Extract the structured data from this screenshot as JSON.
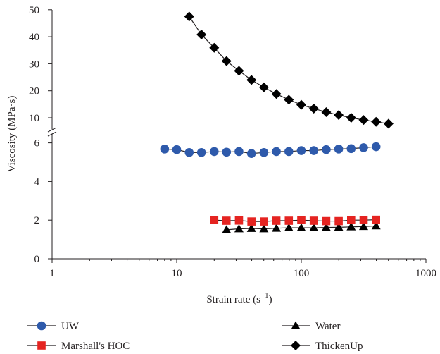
{
  "chart_data": {
    "type": "scatter",
    "title": "",
    "xlabel": "Strain rate (s",
    "xlabel_sup": "−1",
    "xlabel_close": ")",
    "ylabel": "Viscosity (MPa·s)",
    "xscale": "log",
    "xlim": [
      1,
      1000
    ],
    "x_ticks": [
      "1",
      "10",
      "100",
      "1000"
    ],
    "broken_y_axis": true,
    "ylim_lower": [
      0,
      6
    ],
    "ylim_upper": [
      5,
      50
    ],
    "y_ticks_lower": [
      "0",
      "2",
      "4",
      "6"
    ],
    "y_ticks_upper": [
      "10",
      "20",
      "30",
      "40",
      "50"
    ],
    "legend_position": "bottom",
    "series": [
      {
        "name": "UW",
        "marker": "circle",
        "color": "#2e5aab",
        "x": [
          8,
          10,
          12.6,
          15.8,
          20,
          25.1,
          31.6,
          39.8,
          50.1,
          63.1,
          79.4,
          100,
          125.9,
          158.5,
          199.5,
          251.2,
          316.2,
          398.1
        ],
        "y": [
          5.68,
          5.65,
          5.5,
          5.5,
          5.55,
          5.52,
          5.55,
          5.45,
          5.5,
          5.55,
          5.55,
          5.6,
          5.6,
          5.65,
          5.68,
          5.7,
          5.75,
          5.8
        ]
      },
      {
        "name": "Water",
        "marker": "triangle",
        "color": "#000000",
        "x": [
          25.1,
          31.6,
          39.8,
          50.1,
          63.1,
          79.4,
          100,
          125.9,
          158.5,
          199.5,
          251.2,
          316.2,
          398.1
        ],
        "y": [
          1.5,
          1.55,
          1.57,
          1.55,
          1.58,
          1.6,
          1.6,
          1.6,
          1.62,
          1.63,
          1.65,
          1.67,
          1.7
        ]
      },
      {
        "name": "Marshall's HOC",
        "marker": "square",
        "color": "#e52421",
        "x": [
          20,
          25.1,
          31.6,
          39.8,
          50.1,
          63.1,
          79.4,
          100,
          125.9,
          158.5,
          199.5,
          251.2,
          316.2,
          398.1
        ],
        "y": [
          2.0,
          1.97,
          1.98,
          1.93,
          1.93,
          1.97,
          1.97,
          2.0,
          1.97,
          1.95,
          1.95,
          2.0,
          2.0,
          2.02
        ]
      },
      {
        "name": "ThickenUp",
        "marker": "diamond",
        "color": "#000000",
        "x": [
          12.6,
          15.8,
          20,
          25.1,
          31.6,
          39.8,
          50.1,
          63.1,
          79.4,
          100,
          125.9,
          158.5,
          199.5,
          251.2,
          316.2,
          398.1,
          501.2
        ],
        "y": [
          47.5,
          40.8,
          35.9,
          31.0,
          27.4,
          24.0,
          21.3,
          18.8,
          16.7,
          14.8,
          13.4,
          12.1,
          11.0,
          10.0,
          9.2,
          8.5,
          7.8
        ]
      }
    ]
  }
}
